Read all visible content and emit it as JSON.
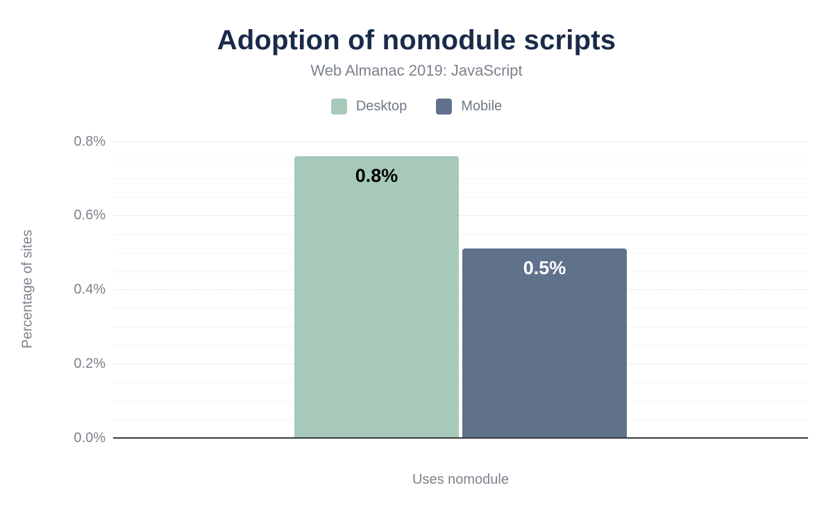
{
  "chart_data": {
    "type": "bar",
    "title": "Adoption of nomodule scripts",
    "subtitle": "Web Almanac 2019: JavaScript",
    "categories": [
      "Uses nomodule"
    ],
    "series": [
      {
        "name": "Desktop",
        "values": [
          0.76
        ],
        "display_labels": [
          "0.8%"
        ],
        "color": "#a7c9ba",
        "label_color": "#000000"
      },
      {
        "name": "Mobile",
        "values": [
          0.51
        ],
        "display_labels": [
          "0.5%"
        ],
        "color": "#60718c",
        "label_color": "#ffffff"
      }
    ],
    "xlabel": "Uses nomodule",
    "ylabel": "Percentage of sites",
    "ylim": [
      0,
      0.8
    ],
    "yticks": [
      {
        "value": 0.0,
        "label": "0.0%"
      },
      {
        "value": 0.2,
        "label": "0.2%"
      },
      {
        "value": 0.4,
        "label": "0.4%"
      },
      {
        "value": 0.6,
        "label": "0.6%"
      },
      {
        "value": 0.8,
        "label": "0.8%"
      }
    ],
    "minor_tick_step": 0.05,
    "grid": true,
    "legend_position": "top"
  },
  "colors": {
    "title": "#1a2b49",
    "muted_text": "#7b828c",
    "axis_line": "#37393d",
    "background": "#ffffff"
  }
}
